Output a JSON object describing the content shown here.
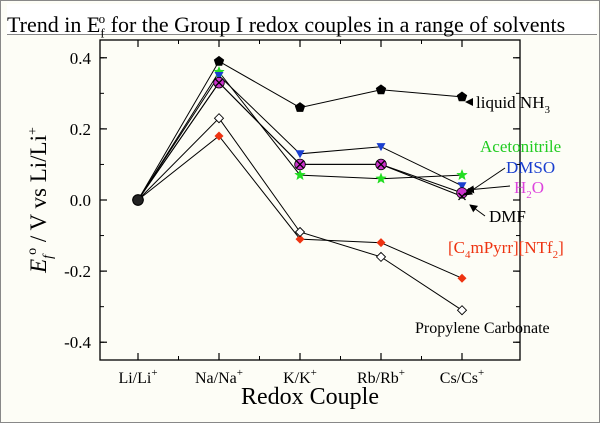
{
  "title": {
    "prefix": "Trend in E",
    "sub": "f",
    "sup": "o",
    "suffix": " for the Group I redox couples in a range of solvents"
  },
  "chart_data": {
    "type": "line",
    "xlabel": "Redox Couple",
    "ylabel": {
      "e": "E",
      "sub": "f",
      "sup": "o",
      "rest": " / V vs Li/Li",
      "plus": "+"
    },
    "ylim": [
      -0.45,
      0.45
    ],
    "yticks": [
      0.4,
      0.2,
      0.0,
      -0.2,
      -0.4
    ],
    "ytick_labels": [
      "0.4",
      "0.2",
      "0.0",
      "-0.2",
      "-0.4"
    ],
    "categories": [
      {
        "base": "Li/Li",
        "sup": "+"
      },
      {
        "base": "Na/Na",
        "sup": "+"
      },
      {
        "base": "K/K",
        "sup": "+"
      },
      {
        "base": "Rb/Rb",
        "sup": "+"
      },
      {
        "base": "Cs/Cs",
        "sup": "+"
      }
    ],
    "series": [
      {
        "name": "liquid NH3",
        "marker": "pentagon",
        "color": "#000000",
        "values": [
          0.0,
          0.39,
          0.26,
          0.31,
          0.29
        ],
        "label": {
          "text": "liquid NH",
          "sub": "3",
          "color": "#000000"
        }
      },
      {
        "name": "Acetonitrile",
        "marker": "star",
        "color": "#22dd22",
        "values": [
          0.0,
          0.36,
          0.07,
          0.06,
          0.07
        ],
        "label": {
          "text": "Acetonitrile",
          "color": "#22cc22"
        }
      },
      {
        "name": "DMSO",
        "marker": "triangle-down",
        "color": "#1a3fcf",
        "values": [
          0.0,
          0.35,
          0.13,
          0.15,
          0.04
        ],
        "label": {
          "text": "DMSO",
          "color": "#1a3fcf"
        }
      },
      {
        "name": "H2O",
        "marker": "circle",
        "color": "#cc33cc",
        "values": [
          0.0,
          0.33,
          0.1,
          0.1,
          0.02
        ],
        "label": {
          "text": "H",
          "sub": "2",
          "after": "O",
          "color": "#dd44dd"
        }
      },
      {
        "name": "DMF",
        "marker": "cross",
        "color": "#000000",
        "values": [
          0.0,
          0.33,
          0.1,
          0.1,
          0.01
        ],
        "label": {
          "text": "DMF",
          "color": "#000000"
        }
      },
      {
        "name": "[C4mPyrr][NTf2]",
        "marker": "diamond",
        "color": "#ee3311",
        "values": [
          0.0,
          0.18,
          -0.11,
          -0.12,
          -0.22
        ],
        "label": {
          "text": "[C",
          "sub": "4",
          "after": "mPyrr][NTf",
          "sub2": "2",
          "after2": "]",
          "color": "#ee3311"
        }
      },
      {
        "name": "Propylene Carbonate",
        "marker": "diamond-open",
        "color": "#000000",
        "values": [
          0.0,
          0.23,
          -0.09,
          -0.16,
          -0.31
        ],
        "label": {
          "text": "Propylene Carbonate",
          "color": "#000000"
        }
      }
    ]
  }
}
